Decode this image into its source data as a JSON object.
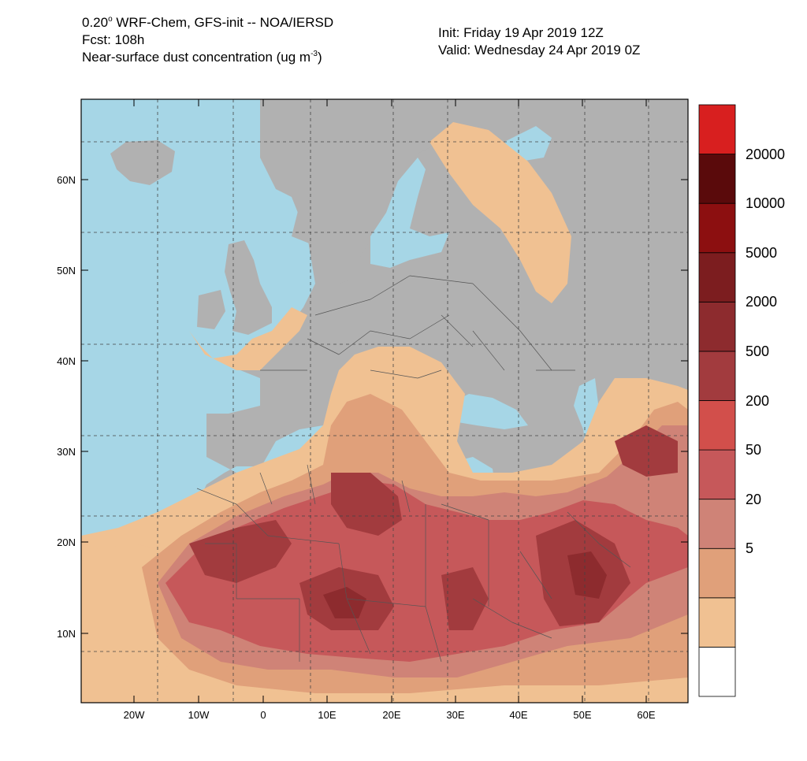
{
  "header": {
    "line1_prefix": "0.20",
    "line1_degree": "o",
    "line1_rest": " WRF-Chem, GFS-init -- NOA/IERSD",
    "line2": "Fcst: 108h",
    "line3_prefix": "Near-surface dust concentration (ug m",
    "line3_exp": "-3",
    "line3_suffix": ")",
    "init": "Init: Friday 19 Apr 2019  12Z",
    "valid": "Valid: Wednesday 24 Apr 2019  0Z"
  },
  "axes": {
    "lat_labels": [
      "60N",
      "50N",
      "40N",
      "30N",
      "20N",
      "10N"
    ],
    "lon_labels": [
      "20W",
      "10W",
      "0",
      "10E",
      "20E",
      "30E",
      "40E",
      "50E",
      "60E"
    ]
  },
  "colorbar": {
    "labels": [
      "20000",
      "10000",
      "5000",
      "2000",
      "500",
      "200",
      "50",
      "20",
      "5"
    ],
    "colors": [
      "#ffffff",
      "#f0c192",
      "#e0a07a",
      "#cf8377",
      "#c6585a",
      "#d24f4b",
      "#a23b3e",
      "#8d2b2e",
      "#7c1d1f",
      "#8c0f10",
      "#5a0a0b",
      "#d81f1f"
    ]
  },
  "map": {
    "colors": {
      "ocean": "#a6d6e6",
      "land": "#b1b1b1",
      "dust5": "#f0c192",
      "dust20": "#e0a07a",
      "dust50": "#cf8377",
      "dust200": "#c6585a",
      "dust500": "#a23b3e",
      "dust2000": "#8d2b2e"
    }
  }
}
